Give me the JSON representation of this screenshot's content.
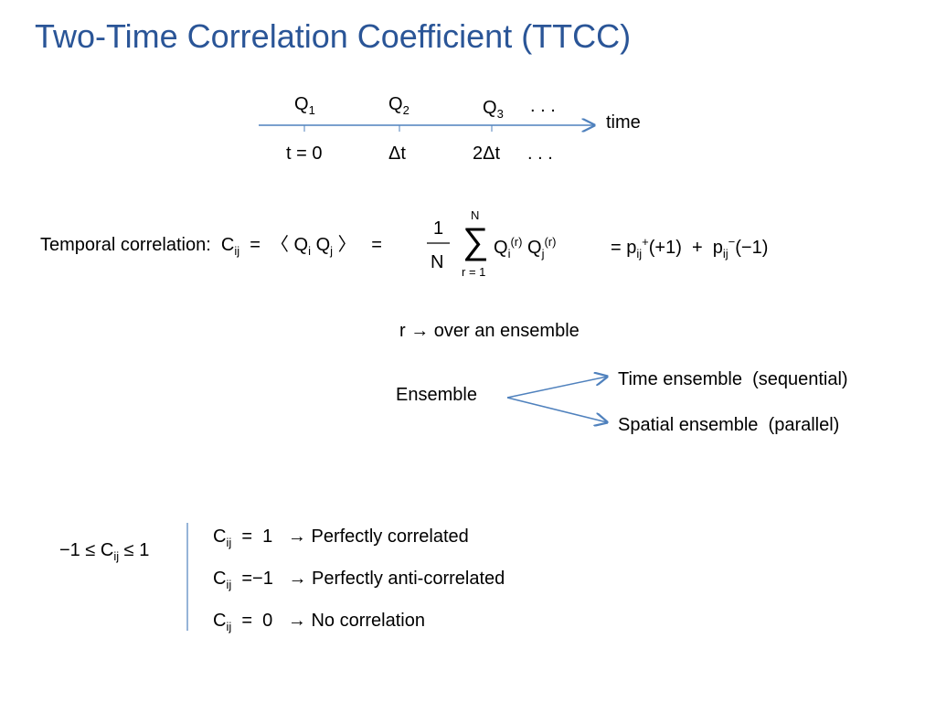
{
  "title": "Two-Time Correlation Coefficient (TTCC)",
  "timeline": {
    "q": [
      [
        {
          "t": "Q"
        },
        {
          "t": "1",
          "pos": "sub"
        }
      ],
      [
        {
          "t": "Q"
        },
        {
          "t": "2",
          "pos": "sub"
        }
      ],
      [
        {
          "t": "Q"
        },
        {
          "t": "3",
          "pos": "sub"
        }
      ]
    ],
    "dots": ". . .",
    "axis": "time",
    "t": [
      "t = 0",
      "Δt",
      "2Δt",
      ". . ."
    ]
  },
  "correlation": {
    "lhs": [
      {
        "t": "Temporal correlation:  C"
      },
      {
        "t": "ij",
        "pos": "sub"
      },
      {
        "t": "  =  〈 Q"
      },
      {
        "t": "i",
        "pos": "sub"
      },
      {
        "t": " Q"
      },
      {
        "t": "j",
        "pos": "sub"
      },
      {
        "t": " 〉   ="
      }
    ],
    "frac_num": "1",
    "frac_den": "N",
    "sum": "∑",
    "sum_top": "N",
    "sum_bottom": "r = 1",
    "summand": [
      {
        "t": "Q"
      },
      {
        "t": "i",
        "pos": "sub"
      },
      {
        "t": "(r)",
        "pos": "sup"
      },
      {
        "t": " Q"
      },
      {
        "t": "j",
        "pos": "sub"
      },
      {
        "t": "(r)",
        "pos": "sup"
      }
    ],
    "rhs": [
      {
        "t": "= p"
      },
      {
        "t": "ij",
        "pos": "sub"
      },
      {
        "t": "+",
        "pos": "sup"
      },
      {
        "t": "(+1)  +  p"
      },
      {
        "t": "ij",
        "pos": "sub"
      },
      {
        "t": "−",
        "pos": "sup"
      },
      {
        "t": "(−1)"
      }
    ]
  },
  "ensemble": {
    "note": "r → over an ensemble",
    "label": "Ensemble",
    "branches": [
      "Time ensemble  (sequential)",
      "Spatial ensemble  (parallel)"
    ]
  },
  "bounds": {
    "range": [
      {
        "t": "−1 ≤ C"
      },
      {
        "t": "ij",
        "pos": "sub"
      },
      {
        "t": " ≤ 1"
      }
    ],
    "cases": [
      [
        {
          "t": "C"
        },
        {
          "t": "ij",
          "pos": "sub"
        },
        {
          "t": "  =  1   → Perfectly correlated"
        }
      ],
      [
        {
          "t": "C"
        },
        {
          "t": "ij",
          "pos": "sub"
        },
        {
          "t": "  =−1   → Perfectly anti-correlated"
        }
      ],
      [
        {
          "t": "C"
        },
        {
          "t": "ij",
          "pos": "sub"
        },
        {
          "t": "  =  0   → No correlation"
        }
      ]
    ]
  }
}
